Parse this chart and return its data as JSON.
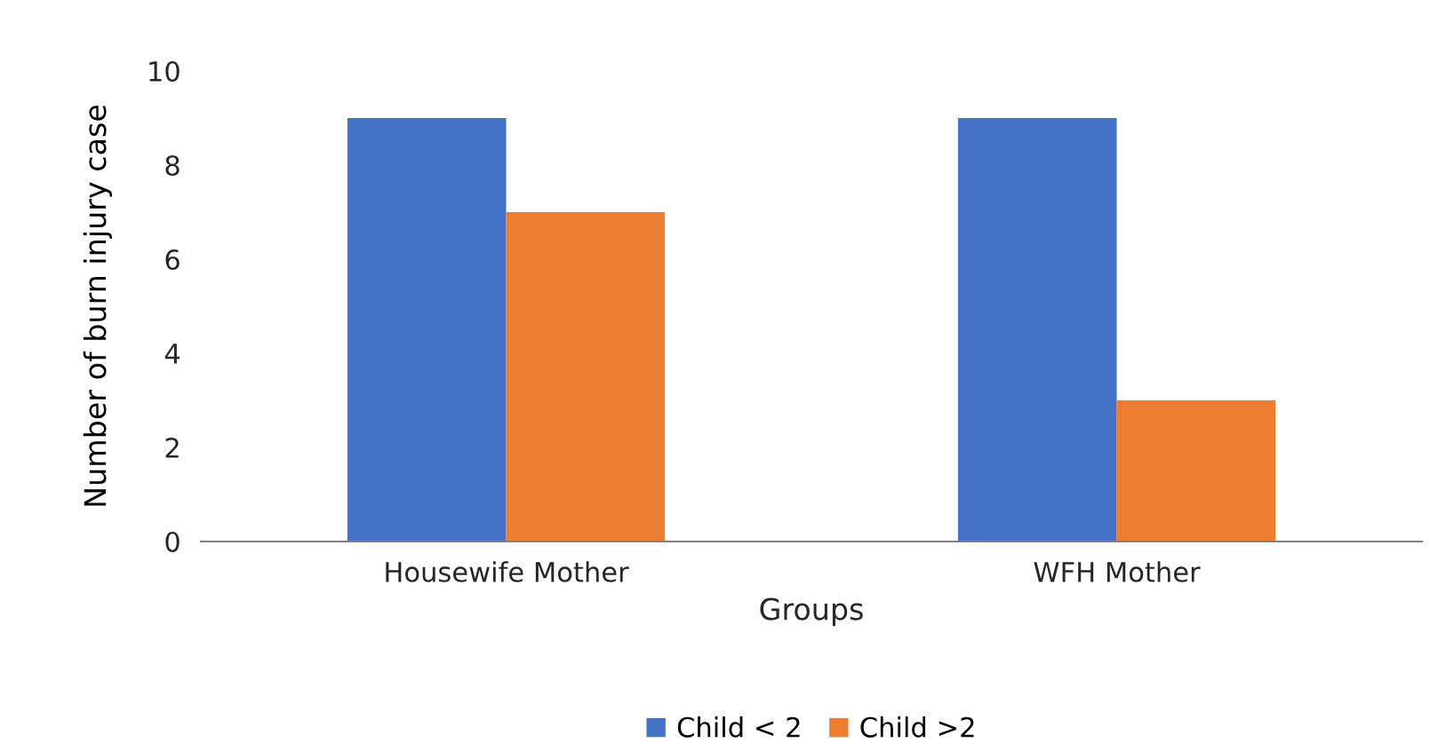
{
  "chart_data": {
    "type": "bar",
    "xlabel": "Groups",
    "ylabel": "Number of burn injury case",
    "categories": [
      "Housewife Mother",
      "WFH Mother"
    ],
    "series": [
      {
        "name": "Child < 2",
        "color": "#4472c4",
        "values": [
          9,
          9
        ]
      },
      {
        "name": "Child >2",
        "color": "#ed7d31",
        "values": [
          7,
          3
        ]
      }
    ],
    "ylim": [
      0,
      10
    ],
    "yticks": [
      0,
      2,
      4,
      6,
      8,
      10
    ],
    "grid": false,
    "legend": "bottom"
  }
}
